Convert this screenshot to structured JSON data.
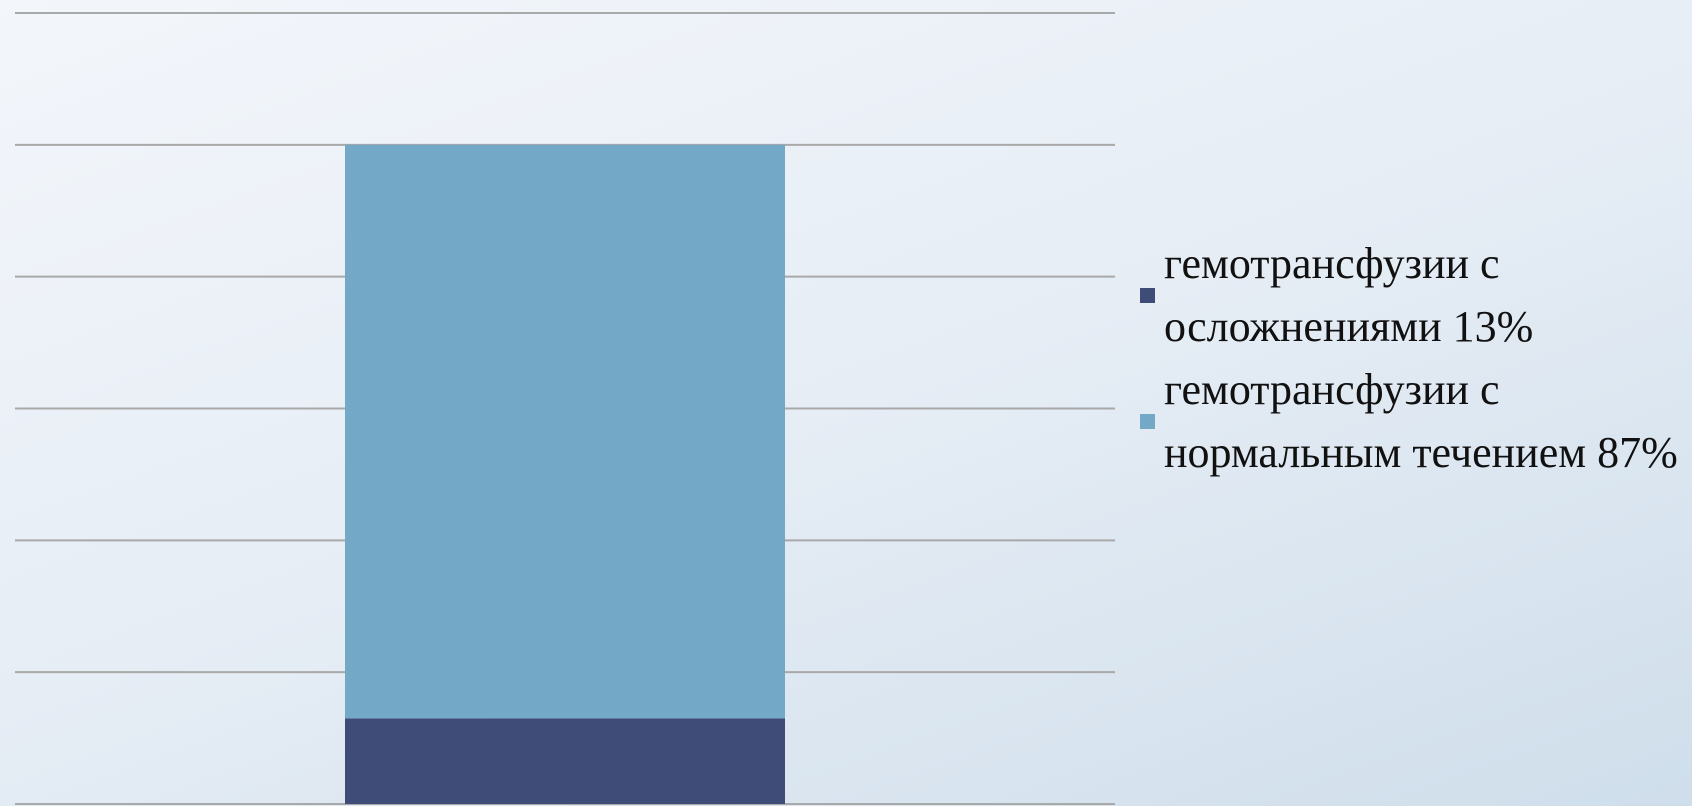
{
  "chart_data": {
    "type": "stacked_bar",
    "categories": [
      null
    ],
    "series": [
      {
        "name": "гемотрансфузии с осложнениями 13%",
        "color": "#404c78",
        "values": [
          13
        ]
      },
      {
        "name": "гемотрансфузии с нормальным течением 87%",
        "color": "#73a8c6",
        "values": [
          87
        ]
      }
    ],
    "ylim": [
      0,
      120
    ],
    "yticks": [
      0,
      20,
      40,
      60,
      80,
      100,
      120
    ],
    "grid": true,
    "legend": "right"
  }
}
